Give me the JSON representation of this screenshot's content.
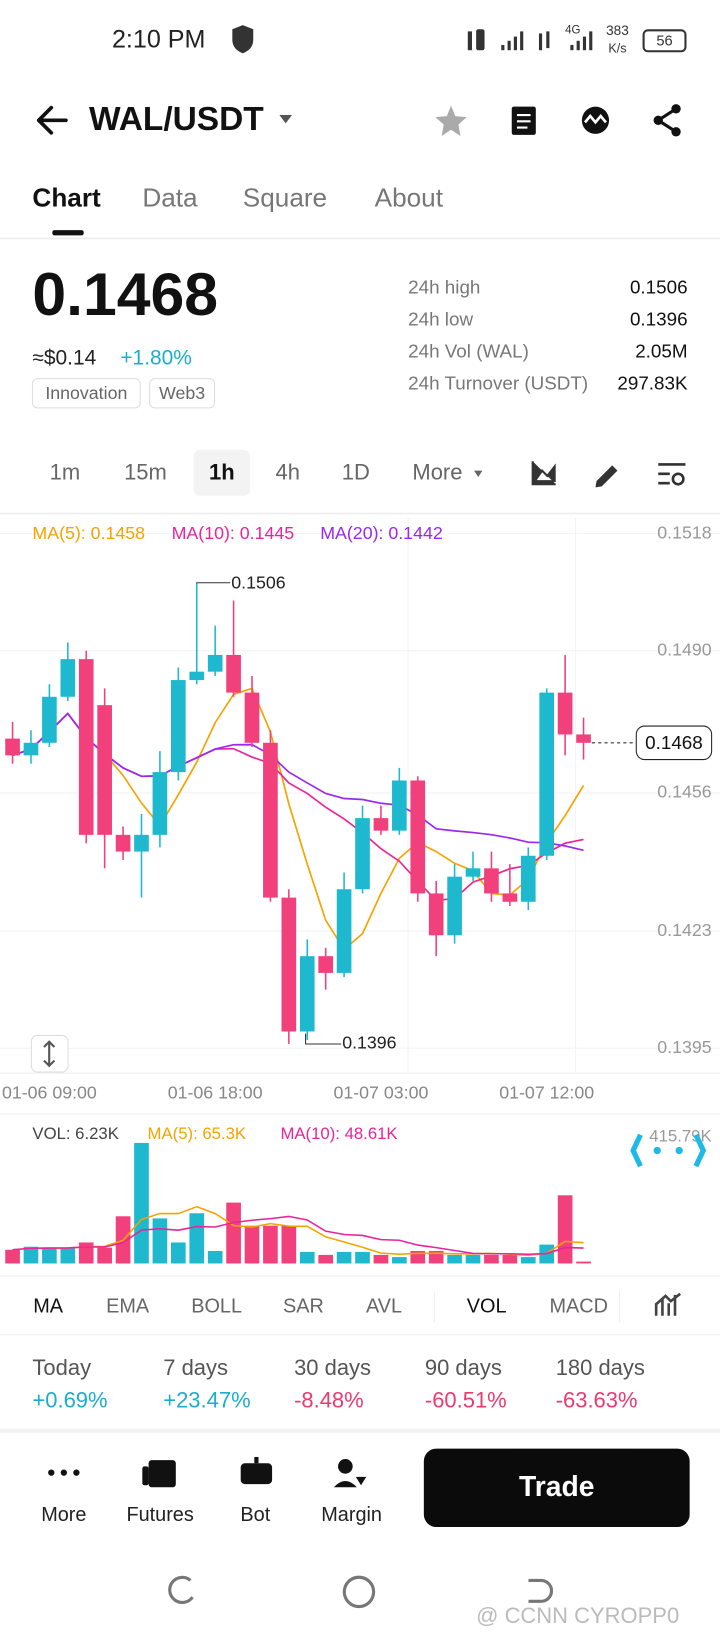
{
  "status_bar": {
    "time": "2:10 PM",
    "network": "4G",
    "speed": "383",
    "speed_unit": "K/s",
    "battery": "56"
  },
  "header": {
    "pair": "WAL/USDT"
  },
  "tabs": [
    "Chart",
    "Data",
    "Square",
    "About"
  ],
  "ticker": {
    "price": "0.1468",
    "usd": "≈$0.14",
    "change": "+1.80%",
    "tags": [
      "Innovation",
      "Web3"
    ],
    "stats": [
      {
        "label": "24h high",
        "value": "0.1506"
      },
      {
        "label": "24h low",
        "value": "0.1396"
      },
      {
        "label": "24h Vol (WAL)",
        "value": "2.05M"
      },
      {
        "label": "24h Turnover (USDT)",
        "value": "297.83K"
      }
    ]
  },
  "intervals": [
    "1m",
    "15m",
    "1h",
    "4h",
    "1D",
    "More"
  ],
  "chart_data": {
    "type": "candlestick",
    "indicators": [
      {
        "label": "MA(5): 0.1458",
        "color": "#f5a300"
      },
      {
        "label": "MA(10): 0.1445",
        "color": "#e8249a"
      },
      {
        "label": "MA(20): 0.1442",
        "color": "#9a28f0"
      }
    ],
    "categories": [
      null,
      null,
      "01-06 09:00",
      null,
      null,
      null,
      null,
      null,
      null,
      null,
      null,
      "01-06 18:00",
      null,
      null,
      null,
      null,
      null,
      null,
      null,
      null,
      "01-07 03:00",
      null,
      null,
      null,
      null,
      null,
      null,
      null,
      null,
      "01-07 12:00",
      null,
      null
    ],
    "open": [
      0.1469,
      0.1465,
      0.1468,
      0.1479,
      0.1488,
      0.1477,
      0.1446,
      0.1442,
      0.1446,
      0.1461,
      0.1483,
      0.1485,
      0.1489,
      0.148,
      0.1468,
      0.1431,
      0.1399,
      0.1417,
      0.1413,
      0.1433,
      0.145,
      0.1447,
      0.1459,
      0.1432,
      0.1422,
      0.1436,
      0.1438,
      0.1432,
      0.143,
      0.1441,
      0.148,
      0.147
    ],
    "high": [
      0.1473,
      0.1471,
      0.1482,
      0.1492,
      0.149,
      0.1481,
      0.1448,
      0.1451,
      0.1466,
      0.1486,
      0.1506,
      0.1496,
      0.1502,
      0.1484,
      0.1471,
      0.1433,
      0.1421,
      0.1419,
      0.1437,
      0.1453,
      0.1453,
      0.1462,
      0.146,
      0.1435,
      0.1439,
      0.1442,
      0.1442,
      0.1439,
      0.1443,
      0.1481,
      0.1489,
      0.1474
    ],
    "low": [
      0.1463,
      0.1463,
      0.1467,
      0.1478,
      0.1444,
      0.1438,
      0.144,
      0.1431,
      0.1443,
      0.1459,
      0.1482,
      0.1484,
      0.1479,
      0.1467,
      0.143,
      0.1396,
      0.1397,
      0.1409,
      0.1412,
      0.1432,
      0.1446,
      0.1446,
      0.143,
      0.1417,
      0.142,
      0.1435,
      0.143,
      0.1429,
      0.1428,
      0.144,
      0.1465,
      0.1464
    ],
    "close": [
      0.1465,
      0.1468,
      0.1479,
      0.1488,
      0.1446,
      0.1446,
      0.1442,
      0.1446,
      0.1461,
      0.1483,
      0.1485,
      0.1489,
      0.148,
      0.1468,
      0.1431,
      0.1399,
      0.1417,
      0.1413,
      0.1433,
      0.145,
      0.1447,
      0.1459,
      0.1432,
      0.1422,
      0.1436,
      0.1438,
      0.1432,
      0.143,
      0.1441,
      0.148,
      0.147,
      0.1468
    ],
    "up_color": "#1fb9cf",
    "down_color": "#f2407c",
    "ylim": [
      0.13893,
      0.15218
    ],
    "yticks": [
      0.1518,
      {
        "value": 0.149,
        "label": "0.1490"
      },
      0.1456,
      0.1423,
      0.1395
    ],
    "high_label": "0.1506",
    "low_label": "0.1396",
    "last_label": "0.1468",
    "volume": {
      "label": "VOL: 6.23K",
      "indicators": [
        {
          "label": "MA(5): 65.3K",
          "color": "#f5a300"
        },
        {
          "label": "MA(10): 48.61K",
          "color": "#e8249a"
        }
      ],
      "values": [
        45,
        55,
        52,
        52,
        69,
        52,
        155,
        396,
        148,
        69,
        165,
        41,
        200,
        124,
        124,
        124,
        38,
        28,
        38,
        38,
        28,
        21,
        41,
        41,
        28,
        28,
        28,
        28,
        21,
        62,
        224,
        6.23
      ],
      "ylim": [
        0,
        415.79
      ],
      "ytick": {
        "value": 415.79,
        "label": "415.79K"
      }
    }
  },
  "indicator_tabs": [
    "MA",
    "EMA",
    "BOLL",
    "SAR",
    "AVL",
    "VOL",
    "MACD"
  ],
  "performance": [
    {
      "label": "Today",
      "value": "+0.69%"
    },
    {
      "label": "7 days",
      "value": "+23.47%"
    },
    {
      "label": "30 days",
      "value": "-8.48%"
    },
    {
      "label": "90 days",
      "value": "-60.51%"
    },
    {
      "label": "180 days",
      "value": "-63.63%"
    }
  ],
  "nav": [
    "More",
    "Futures",
    "Bot",
    "Margin"
  ],
  "trade": "Trade",
  "watermark": "@ CCNN CYROPP0"
}
